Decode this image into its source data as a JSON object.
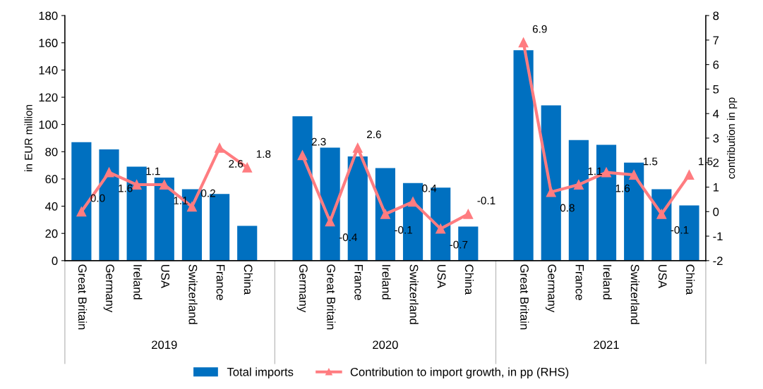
{
  "chart_data": {
    "type": "bar",
    "categories": [
      "Great Britain",
      "Germany",
      "Ireland",
      "USA",
      "Switzerland",
      "France",
      "China",
      null,
      "Germany",
      "Great Britain",
      "France",
      "Ireland",
      "Switzerland",
      "USA",
      "China",
      null,
      "Great Britain",
      "Germany",
      "France",
      "Ireland",
      "Switzerland",
      "USA",
      "China"
    ],
    "ylabel": "in EUR million",
    "y2label": "contribution in pp",
    "ylim": [
      0,
      180
    ],
    "yticks": [
      0,
      20,
      40,
      60,
      80,
      100,
      120,
      140,
      160,
      180
    ],
    "y2lim": [
      -2,
      8
    ],
    "y2ticks": [
      -2,
      -1,
      0,
      1,
      2,
      3,
      4,
      5,
      6,
      7,
      8
    ],
    "series": [
      {
        "name": "Total imports",
        "color": "#0070c0",
        "values": [
          87,
          81.7,
          69,
          61,
          52.5,
          49,
          25.5,
          null,
          106,
          83,
          76.5,
          68,
          57,
          53.6,
          25,
          null,
          154.5,
          114,
          88.5,
          85,
          72,
          52.5,
          40.6
        ]
      },
      {
        "name": "Contribution to import growth, in pp (RHS)",
        "type": "line",
        "axis": "y2",
        "color": "#ff7c80",
        "marker": "triangle",
        "value_labels": [
          "0.0",
          "1.6",
          "1.1",
          "1.1",
          "0.2",
          "2.6",
          "1.8",
          null,
          "2.3",
          "-0.4",
          "2.6",
          "-0.1",
          "0.4",
          "-0.7",
          "-0.1",
          null,
          "6.9",
          "0.8",
          "1.1",
          "1.6",
          "1.5",
          "-0.1",
          "1.5"
        ],
        "values": [
          0.0,
          1.6,
          1.1,
          1.1,
          0.2,
          2.6,
          1.8,
          null,
          2.3,
          -0.4,
          2.6,
          -0.1,
          0.4,
          -0.7,
          -0.1,
          null,
          6.9,
          0.8,
          1.1,
          1.6,
          1.5,
          -0.1,
          1.5
        ]
      }
    ],
    "annotations": [
      "2019",
      "2020",
      "2021"
    ],
    "grid": false,
    "legend": "bottom"
  }
}
